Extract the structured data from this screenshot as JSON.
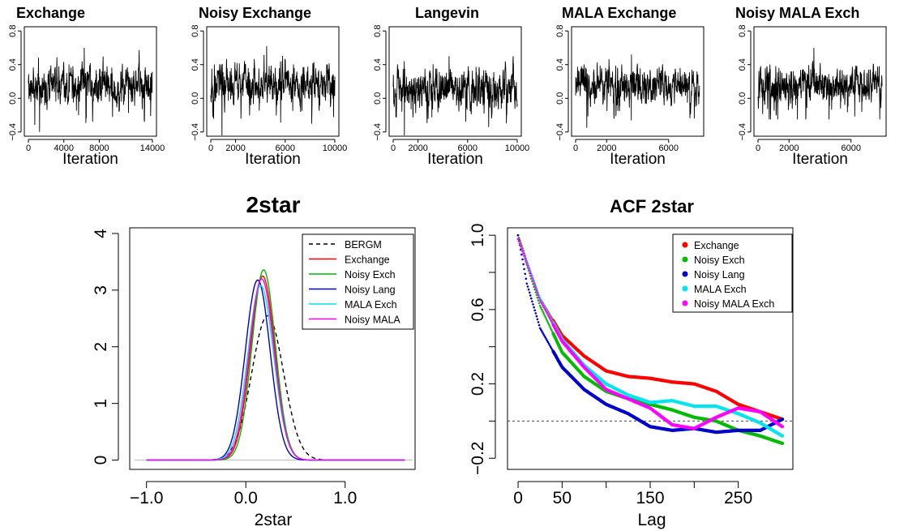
{
  "chart_data": [
    {
      "type": "line",
      "title": "Exchange",
      "xlabel": "Iteration",
      "ylabel": "",
      "xlim": [
        0,
        14000
      ],
      "ylim": [
        -0.45,
        0.85
      ],
      "xticks": [
        0,
        4000,
        8000,
        14000
      ],
      "yticks": [
        -0.4,
        0,
        0.4,
        0.8
      ],
      "ytick_labels": [
        "−0.4",
        "0.0",
        "0.4",
        "0.8"
      ],
      "series": [
        {
          "n": 14000,
          "mean": 0.16,
          "sd": 0.12,
          "ymin": -0.4,
          "ymax": 0.6,
          "color": "#000000"
        }
      ]
    },
    {
      "type": "line",
      "title": "Noisy Exchange",
      "xlabel": "Iteration",
      "ylabel": "",
      "xlim": [
        0,
        10000
      ],
      "ylim": [
        -0.45,
        0.85
      ],
      "xticks": [
        0,
        2000,
        6000,
        10000
      ],
      "yticks": [
        -0.4,
        0,
        0.4,
        0.8
      ],
      "ytick_labels": [
        "−0.4",
        "0.0",
        "0.4",
        "0.8"
      ],
      "series": [
        {
          "n": 10000,
          "mean": 0.16,
          "sd": 0.12,
          "ymin": -0.55,
          "ymax": 0.62,
          "color": "#000000"
        }
      ]
    },
    {
      "type": "line",
      "title": "Langevin",
      "xlabel": "Iteration",
      "ylabel": "",
      "xlim": [
        0,
        10000
      ],
      "ylim": [
        -0.45,
        0.85
      ],
      "xticks": [
        0,
        2000,
        6000,
        10000
      ],
      "yticks": [
        -0.4,
        0,
        0.4,
        0.8
      ],
      "ytick_labels": [
        "−0.4",
        "0.0",
        "0.4",
        "0.8"
      ],
      "series": [
        {
          "n": 10000,
          "mean": 0.12,
          "sd": 0.12,
          "ymin": -0.45,
          "ymax": 0.5,
          "color": "#000000"
        }
      ]
    },
    {
      "type": "line",
      "title": "MALA Exchange",
      "xlabel": "Iteration",
      "ylabel": "",
      "xlim": [
        0,
        8000
      ],
      "ylim": [
        -0.45,
        0.85
      ],
      "xticks": [
        0,
        2000,
        6000
      ],
      "yticks": [
        -0.4,
        0,
        0.4,
        0.8
      ],
      "ytick_labels": [
        "−0.4",
        "0.0",
        "0.4",
        "0.8"
      ],
      "series": [
        {
          "n": 8000,
          "mean": 0.16,
          "sd": 0.11,
          "ymin": -0.35,
          "ymax": 0.52,
          "color": "#000000"
        }
      ]
    },
    {
      "type": "line",
      "title": "Noisy MALA Exch",
      "xlabel": "Iteration",
      "ylabel": "",
      "xlim": [
        0,
        8000
      ],
      "ylim": [
        -0.45,
        0.85
      ],
      "xticks": [
        0,
        2000,
        6000
      ],
      "yticks": [
        -0.4,
        0,
        0.4,
        0.8
      ],
      "ytick_labels": [
        "−0.4",
        "0.0",
        "0.4",
        "0.8"
      ],
      "series": [
        {
          "n": 8000,
          "mean": 0.16,
          "sd": 0.11,
          "ymin": -0.25,
          "ymax": 0.6,
          "color": "#000000"
        }
      ]
    },
    {
      "type": "line",
      "title": "2star",
      "xlabel": "2star",
      "ylabel": "",
      "xlim": [
        -1.12,
        1.68
      ],
      "ylim": [
        -0.15,
        4.1
      ],
      "xticks": [
        -1,
        0,
        1
      ],
      "xtick_labels": [
        "−1.0",
        "0.0",
        "1.0"
      ],
      "yticks": [
        0,
        1,
        2,
        3,
        4
      ],
      "ytick_labels": [
        "0",
        "1",
        "2",
        "3",
        "4"
      ],
      "series": [
        {
          "name": "BERGM",
          "type": "density",
          "mu": 0.22,
          "sigma": 0.16,
          "peak": 2.55,
          "color": "#000000",
          "dash": true
        },
        {
          "name": "Exchange",
          "type": "density",
          "mu": 0.17,
          "sigma": 0.123,
          "peak": 3.25,
          "color": "#ff0000"
        },
        {
          "name": "Noisy Exch",
          "type": "density",
          "mu": 0.18,
          "sigma": 0.118,
          "peak": 3.36,
          "color": "#00bb00"
        },
        {
          "name": "Noisy Lang",
          "type": "density",
          "mu": 0.12,
          "sigma": 0.125,
          "peak": 3.18,
          "color": "#0000cc"
        },
        {
          "name": "MALA Exch",
          "type": "density",
          "mu": 0.15,
          "sigma": 0.13,
          "peak": 3.08,
          "color": "#00e5ee"
        },
        {
          "name": "Noisy MALA",
          "type": "density",
          "mu": 0.16,
          "sigma": 0.125,
          "peak": 3.2,
          "color": "#ff00ff"
        }
      ],
      "legend_position": "top-right"
    },
    {
      "type": "scatter",
      "title": "ACF 2star",
      "xlabel": "Lag",
      "ylabel": "",
      "xlim": [
        -12,
        312
      ],
      "ylim": [
        -0.26,
        1.04
      ],
      "xticks": [
        0,
        50,
        150,
        250
      ],
      "yticks": [
        -0.2,
        0.2,
        0.6,
        1.0
      ],
      "ytick_labels": [
        "−0.2",
        "0.2",
        "0.6",
        "1.0"
      ],
      "hline": 0,
      "series": [
        {
          "name": "Exchange",
          "color": "#ff0000",
          "lags": [
            0,
            10,
            25,
            50,
            75,
            100,
            125,
            150,
            175,
            200,
            225,
            250,
            275,
            300
          ],
          "values": [
            1.0,
            0.86,
            0.66,
            0.46,
            0.35,
            0.27,
            0.24,
            0.23,
            0.21,
            0.2,
            0.16,
            0.09,
            0.05,
            0.01
          ]
        },
        {
          "name": "Noisy Exch",
          "color": "#00bb00",
          "lags": [
            0,
            10,
            25,
            50,
            75,
            100,
            125,
            150,
            175,
            200,
            225,
            250,
            275,
            300
          ],
          "values": [
            1.0,
            0.84,
            0.62,
            0.37,
            0.24,
            0.16,
            0.12,
            0.09,
            0.06,
            0.02,
            0.0,
            -0.05,
            -0.08,
            -0.12
          ]
        },
        {
          "name": "Noisy Lang",
          "color": "#0000cc",
          "lags": [
            0,
            10,
            25,
            50,
            75,
            100,
            125,
            150,
            175,
            200,
            225,
            250,
            275,
            300
          ],
          "values": [
            1.0,
            0.74,
            0.5,
            0.29,
            0.17,
            0.09,
            0.04,
            -0.03,
            -0.05,
            -0.04,
            -0.06,
            -0.05,
            -0.05,
            0.01
          ]
        },
        {
          "name": "MALA Exch",
          "color": "#00e5ee",
          "lags": [
            0,
            10,
            25,
            50,
            75,
            100,
            125,
            150,
            175,
            200,
            225,
            250,
            275,
            300
          ],
          "values": [
            0.98,
            0.86,
            0.66,
            0.44,
            0.3,
            0.2,
            0.14,
            0.1,
            0.11,
            0.08,
            0.08,
            0.04,
            -0.01,
            -0.08
          ]
        },
        {
          "name": "Noisy MALA Exch",
          "color": "#ff00ff",
          "lags": [
            0,
            10,
            25,
            50,
            75,
            100,
            125,
            150,
            175,
            200,
            225,
            250,
            275,
            300
          ],
          "values": [
            0.98,
            0.85,
            0.65,
            0.43,
            0.29,
            0.17,
            0.12,
            0.07,
            -0.02,
            -0.04,
            0.02,
            0.07,
            0.05,
            -0.03
          ]
        }
      ],
      "legend_position": "top-right"
    }
  ]
}
